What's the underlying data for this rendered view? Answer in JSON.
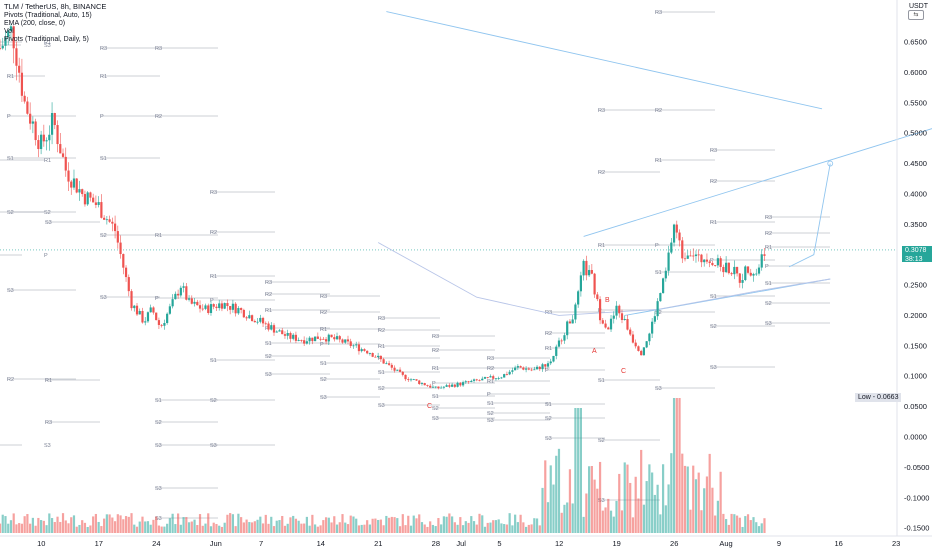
{
  "header": {
    "title": "TLM / TetherUS, 8h, BINANCE",
    "indicators": [
      "Pivots (Traditional, Auto, 15)",
      "EMA (200, close, 0)",
      "Vol",
      "Pivots (Traditional, Daily, 5)"
    ]
  },
  "currency": "USDT",
  "current_price": {
    "value": "0.3078",
    "countdown": "38:13"
  },
  "low_label": "Low - 0.0663",
  "colors": {
    "up": "#26a69a",
    "down": "#ef5350",
    "trend": "#90c5ef",
    "ema": "#b8c5e8",
    "pivot": "#9aa0ad"
  },
  "chart_data": {
    "type": "candlestick",
    "price_axis": {
      "range": [
        -0.16,
        0.7
      ],
      "ticks": [
        "0.6500",
        "0.6000",
        "0.5500",
        "0.5000",
        "0.4500",
        "0.4000",
        "0.3500",
        "0.3000",
        "0.2500",
        "0.2000",
        "0.1500",
        "0.1000",
        "0.0500",
        "0.0000",
        "-0.0500",
        "-0.1000",
        "-0.1500"
      ]
    },
    "time_axis": {
      "range_days": [
        0,
        93
      ],
      "labels": [
        {
          "t": 5,
          "label": "10"
        },
        {
          "t": 12,
          "label": "17"
        },
        {
          "t": 19,
          "label": "24"
        },
        {
          "t": 26,
          "label": "Jun"
        },
        {
          "t": 32,
          "label": "7"
        },
        {
          "t": 39,
          "label": "14"
        },
        {
          "t": 46,
          "label": "21"
        },
        {
          "t": 53,
          "label": "28"
        },
        {
          "t": 56,
          "label": "Jul"
        },
        {
          "t": 61,
          "label": "5"
        },
        {
          "t": 68,
          "label": "12"
        },
        {
          "t": 75,
          "label": "19"
        },
        {
          "t": 82,
          "label": "26"
        },
        {
          "t": 88,
          "label": "Aug"
        },
        {
          "t": 95,
          "label": "9"
        },
        {
          "t": 102,
          "label": "16"
        },
        {
          "t": 109,
          "label": "23"
        }
      ]
    },
    "price_path": [
      [
        0,
        0.64
      ],
      [
        1.5,
        0.67
      ],
      [
        3,
        0.55
      ],
      [
        5,
        0.48
      ],
      [
        6.5,
        0.52
      ],
      [
        8,
        0.44
      ],
      [
        10,
        0.4
      ],
      [
        12,
        0.38
      ],
      [
        14,
        0.34
      ],
      [
        15,
        0.28
      ],
      [
        16,
        0.22
      ],
      [
        17.5,
        0.19
      ],
      [
        18.5,
        0.21
      ],
      [
        19.5,
        0.18
      ],
      [
        21,
        0.22
      ],
      [
        22,
        0.25
      ],
      [
        23,
        0.22
      ],
      [
        25,
        0.21
      ],
      [
        27,
        0.22
      ],
      [
        29,
        0.21
      ],
      [
        31,
        0.195
      ],
      [
        33,
        0.18
      ],
      [
        35,
        0.165
      ],
      [
        37,
        0.16
      ],
      [
        39,
        0.165
      ],
      [
        41,
        0.16
      ],
      [
        43,
        0.15
      ],
      [
        45,
        0.14
      ],
      [
        47,
        0.12
      ],
      [
        49,
        0.1
      ],
      [
        51,
        0.09
      ],
      [
        53,
        0.08
      ],
      [
        55,
        0.085
      ],
      [
        57,
        0.09
      ],
      [
        59,
        0.095
      ],
      [
        61,
        0.1
      ],
      [
        63,
        0.115
      ],
      [
        65,
        0.11
      ],
      [
        67,
        0.125
      ],
      [
        68.5,
        0.17
      ],
      [
        70,
        0.21
      ],
      [
        71,
        0.28
      ],
      [
        72,
        0.26
      ],
      [
        73,
        0.2
      ],
      [
        74,
        0.18
      ],
      [
        75,
        0.21
      ],
      [
        76,
        0.19
      ],
      [
        77,
        0.16
      ],
      [
        78,
        0.14
      ],
      [
        79,
        0.17
      ],
      [
        80,
        0.22
      ],
      [
        81,
        0.27
      ],
      [
        82,
        0.35
      ],
      [
        83,
        0.3
      ],
      [
        84,
        0.31
      ],
      [
        85,
        0.29
      ],
      [
        86,
        0.3
      ],
      [
        87,
        0.285
      ],
      [
        88,
        0.28
      ],
      [
        89,
        0.275
      ],
      [
        90,
        0.26
      ],
      [
        91,
        0.28
      ],
      [
        92,
        0.27
      ],
      [
        93,
        0.31
      ]
    ],
    "volume_scale": 1.0,
    "pivot_labels": [
      "R3",
      "R2",
      "R1",
      "P",
      "S1",
      "S2",
      "S3"
    ],
    "pattern_labels": [
      "A",
      "B",
      "C",
      "C"
    ],
    "lines": {
      "trend_top_start": [
        47,
        0.7
      ],
      "trend_top_end": [
        100,
        0.54
      ],
      "channel_upper_start": [
        71,
        0.33
      ],
      "channel_upper_end": [
        114,
        0.51
      ],
      "channel_lower_start": [
        76,
        0.2
      ],
      "channel_lower_end": [
        101,
        0.26
      ],
      "ema_points": [
        [
          46,
          0.32
        ],
        [
          58,
          0.23
        ],
        [
          68,
          0.2
        ],
        [
          80,
          0.21
        ],
        [
          92,
          0.24
        ],
        [
          101,
          0.26
        ]
      ],
      "projection": [
        [
          96,
          0.28
        ],
        [
          99,
          0.3
        ],
        [
          101,
          0.45
        ]
      ]
    }
  }
}
